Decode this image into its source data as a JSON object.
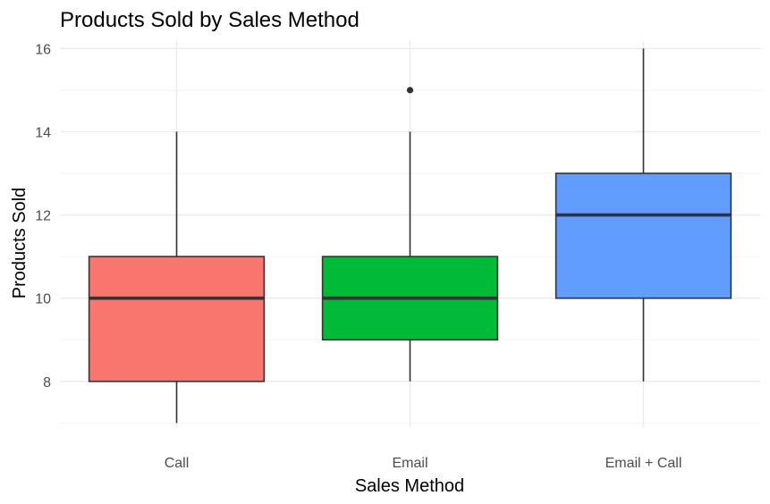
{
  "chart_data": {
    "type": "boxplot",
    "title": "Products Sold by Sales Method",
    "xlabel": "Sales Method",
    "ylabel": "Products Sold",
    "ylim": [
      6.9,
      16.2
    ],
    "yticks": [
      8,
      10,
      12,
      14,
      16
    ],
    "grid": true,
    "legend": "none",
    "categories": [
      "Call",
      "Email",
      "Email + Call"
    ],
    "boxes": [
      {
        "category": "Call",
        "min": 7,
        "q1": 8,
        "median": 10,
        "q3": 11,
        "max": 14,
        "outliers": [],
        "color": "#F8766D"
      },
      {
        "category": "Email",
        "min": 8,
        "q1": 9,
        "median": 10,
        "q3": 11,
        "max": 14,
        "outliers": [
          15
        ],
        "color": "#00BA38"
      },
      {
        "category": "Email + Call",
        "min": 8,
        "q1": 10,
        "median": 12,
        "q3": 13,
        "max": 16,
        "outliers": [],
        "color": "#619CFF"
      }
    ]
  }
}
